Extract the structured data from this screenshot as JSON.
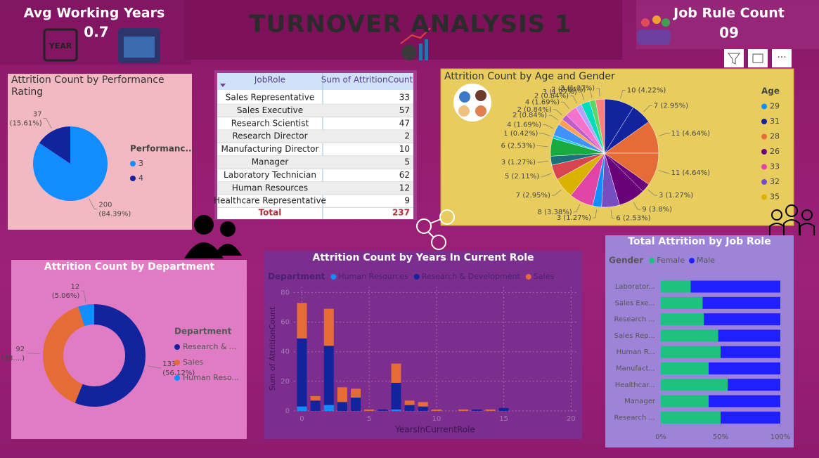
{
  "header": {
    "title": "TURNOVER ANALYSIS 1"
  },
  "kpis": [
    {
      "label": "Avg Working Years",
      "value": 0.7
    },
    {
      "label": "Job Rule Count",
      "value": "09"
    }
  ],
  "table": {
    "columns": [
      "JobRole",
      "Sum of AttritionCount"
    ],
    "rows": [
      [
        "Sales Representative",
        33
      ],
      [
        "Sales Executive",
        57
      ],
      [
        "Research Scientist",
        47
      ],
      [
        "Research Director",
        2
      ],
      [
        "Manufacturing Director",
        10
      ],
      [
        "Manager",
        5
      ],
      [
        "Laboratory Technician",
        62
      ],
      [
        "Human Resources",
        12
      ],
      [
        "Healthcare Representative",
        9
      ]
    ],
    "total": [
      "Total",
      237
    ]
  },
  "chart_data": [
    {
      "type": "pie",
      "title": "Attrition Count by Performance Rating",
      "legend_title": "Performanc...",
      "categories": [
        "3",
        "4"
      ],
      "values": [
        200,
        37
      ],
      "percent_labels": [
        "(84.39%)",
        "(15.61%)"
      ],
      "colors": [
        "#118dff",
        "#12239e"
      ]
    },
    {
      "type": "pie",
      "title": "Attrition Count by Age and Gender",
      "legend_title": "Age",
      "legend": [
        {
          "name": "29",
          "color": "#118dff"
        },
        {
          "name": "31",
          "color": "#12239e"
        },
        {
          "name": "28",
          "color": "#e66c37"
        },
        {
          "name": "26",
          "color": "#6b007b"
        },
        {
          "name": "33",
          "color": "#e044a7"
        },
        {
          "name": "32",
          "color": "#744ec2"
        },
        {
          "name": "35",
          "color": "#d9b300"
        }
      ],
      "values": [
        10,
        7,
        11,
        11,
        3,
        9,
        6,
        3,
        8,
        7,
        5,
        3,
        6,
        1,
        4,
        2,
        2,
        4,
        2,
        3,
        2,
        3
      ],
      "percent_labels": [
        "(4.22%)",
        "(2.95%)",
        "(4.64%)",
        "(4.64%)",
        "(1.27%)",
        "(3.8%)",
        "(2.53%)",
        "(1.27%)",
        "(3.38%)",
        "(2.95%)",
        "(2.11%)",
        "(1.27%)",
        "(2.53%)",
        "(0.42%)",
        "(1.69%)",
        "(0.84%)",
        "(0.84%)",
        "(1.69%)",
        "(0.84%)",
        "(1.27%)",
        "(0.84%)",
        "(1.27%)"
      ],
      "colors": [
        "#12239e",
        "#12239e",
        "#e66c37",
        "#e66c37",
        "#6b007b",
        "#6b007b",
        "#744ec2",
        "#118dff",
        "#e044a7",
        "#d9b300",
        "#d64550",
        "#197278",
        "#1aab40",
        "#15c6f4",
        "#4092ff",
        "#ffa058",
        "#be5dc9",
        "#f472d0",
        "#b5a1ff",
        "#00dbbc",
        "#5bd667",
        "#ff8080"
      ]
    },
    {
      "type": "donut",
      "title": "Attrition Count by Department",
      "legend_title": "Department",
      "categories": [
        "Research & ...",
        "Sales",
        "Human Reso..."
      ],
      "values": [
        133,
        92,
        12
      ],
      "percent_labels": [
        "(56.12%)",
        "(38....)",
        "(5.06%)"
      ],
      "colors": [
        "#12239e",
        "#e66c37",
        "#118dff"
      ]
    },
    {
      "type": "stacked_bar",
      "title": "Attrition Count by Years In Current Role",
      "legend_title": "Department",
      "xlabel": "YearsInCurrentRole",
      "ylabel": "Sum of AttritionCount",
      "x": [
        0,
        1,
        2,
        3,
        4,
        5,
        6,
        7,
        8,
        9,
        10,
        12,
        13,
        14,
        15
      ],
      "series": [
        {
          "name": "Human Resources",
          "color": "#118dff",
          "values": [
            3,
            0,
            4,
            0,
            0,
            0,
            0,
            1,
            0,
            0,
            0,
            0,
            0,
            0,
            0
          ]
        },
        {
          "name": "Research & Development",
          "color": "#12239e",
          "values": [
            46,
            7,
            40,
            6,
            9,
            0,
            1,
            18,
            4,
            3,
            0,
            0,
            1,
            0,
            2
          ]
        },
        {
          "name": "Sales",
          "color": "#e66c37",
          "values": [
            24,
            3,
            25,
            10,
            6,
            1,
            0,
            13,
            3,
            3,
            1,
            1,
            0,
            1,
            0
          ]
        }
      ],
      "xlim": [
        -0.6,
        20.4
      ],
      "xticks": [
        0,
        5,
        10,
        15,
        20
      ],
      "ylim": [
        0,
        84
      ],
      "yticks": [
        0,
        20,
        40,
        60,
        80
      ],
      "grid": true
    },
    {
      "type": "stacked_hbar_100",
      "title": "Total Attrition by Job Role",
      "legend_title": "Gender",
      "categories": [
        "Laborator...",
        "Sales Exe...",
        "Research ...",
        "Sales Rep...",
        "Human R...",
        "Manufact...",
        "Healthcar...",
        "Manager",
        "Research ..."
      ],
      "series": [
        {
          "name": "Female",
          "color": "#1ec27f",
          "values": [
            25,
            35,
            36,
            48,
            50,
            40,
            56,
            40,
            50
          ]
        },
        {
          "name": "Male",
          "color": "#1f1fff",
          "values": [
            75,
            65,
            64,
            52,
            50,
            60,
            44,
            60,
            50
          ]
        }
      ],
      "xlim": [
        0,
        100
      ],
      "xticks": [
        {
          "value": 0,
          "label": "0%"
        },
        {
          "value": 50,
          "label": "50%"
        },
        {
          "value": 100,
          "label": "100%"
        }
      ]
    }
  ]
}
